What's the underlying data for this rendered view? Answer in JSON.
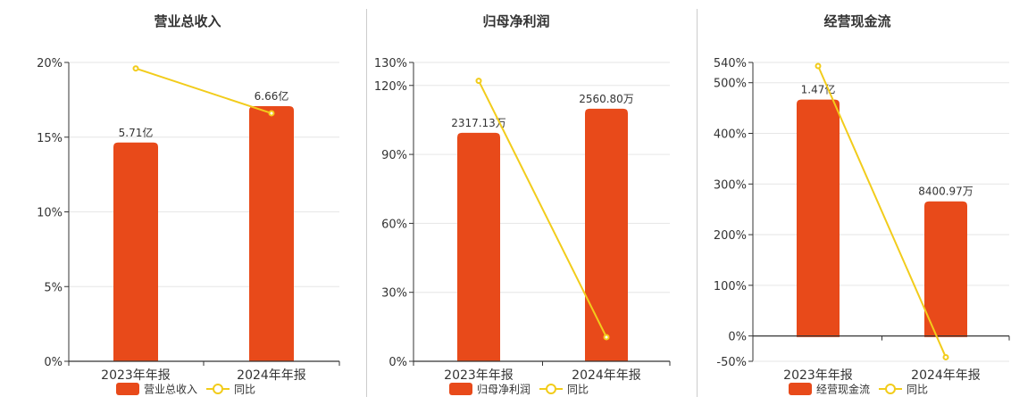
{
  "colors": {
    "bar": "#E84A1A",
    "line": "#F2CC1B",
    "grid": "#E6E6E6",
    "axis": "#333333",
    "divider": "#CCCCCC",
    "text": "#333333"
  },
  "chart_data": [
    {
      "type": "bar",
      "title": "营业总收入",
      "categories": [
        "2023年年报",
        "2024年年报"
      ],
      "bar_series": {
        "name": "营业总收入",
        "values": [
          5.71,
          6.66
        ],
        "labels": [
          "5.71亿",
          "6.66亿"
        ],
        "unit": "亿"
      },
      "line_series": {
        "name": "同比",
        "values": [
          19.6,
          16.6
        ],
        "unit": "%"
      },
      "right_axis": {
        "min": 0,
        "max": 7.8
      },
      "left_axis": {
        "min": 0,
        "max": 20,
        "ticks": [
          0,
          5,
          10,
          15,
          20
        ],
        "tick_labels": [
          "0%",
          "5%",
          "10%",
          "15%",
          "20%"
        ]
      },
      "legend": "bottom-center",
      "grid": true
    },
    {
      "type": "bar",
      "title": "归母净利润",
      "categories": [
        "2023年年报",
        "2024年年报"
      ],
      "bar_series": {
        "name": "归母净利润",
        "values": [
          2317.13,
          2560.8
        ],
        "labels": [
          "2317.13万",
          "2560.80万"
        ],
        "unit": "万"
      },
      "line_series": {
        "name": "同比",
        "values": [
          122,
          10.5
        ],
        "unit": "%"
      },
      "right_axis": {
        "min": 0,
        "max": 3030
      },
      "left_axis": {
        "min": 0,
        "max": 130,
        "ticks": [
          0,
          30,
          60,
          90,
          120,
          130
        ],
        "tick_labels": [
          "0%",
          "30%",
          "60%",
          "90%",
          "120%",
          "130%"
        ]
      },
      "legend": "bottom-center",
      "grid": true
    },
    {
      "type": "bar",
      "title": "经营现金流",
      "categories": [
        "2023年年报",
        "2024年年报"
      ],
      "bar_series": {
        "name": "经营现金流",
        "values": [
          1.47,
          0.840097
        ],
        "labels": [
          "1.47亿",
          "8400.97万"
        ],
        "unit": "亿"
      },
      "line_series": {
        "name": "同比",
        "values": [
          533,
          -42
        ],
        "unit": "%"
      },
      "right_axis": {
        "min": -0.15,
        "max": 1.7
      },
      "left_axis": {
        "min": -50,
        "max": 540,
        "ticks": [
          -50,
          0,
          100,
          200,
          300,
          400,
          500,
          540
        ],
        "tick_labels": [
          "-50%",
          "0%",
          "100%",
          "200%",
          "300%",
          "400%",
          "500%",
          "540%"
        ]
      },
      "legend": "bottom-center",
      "grid": true
    }
  ]
}
